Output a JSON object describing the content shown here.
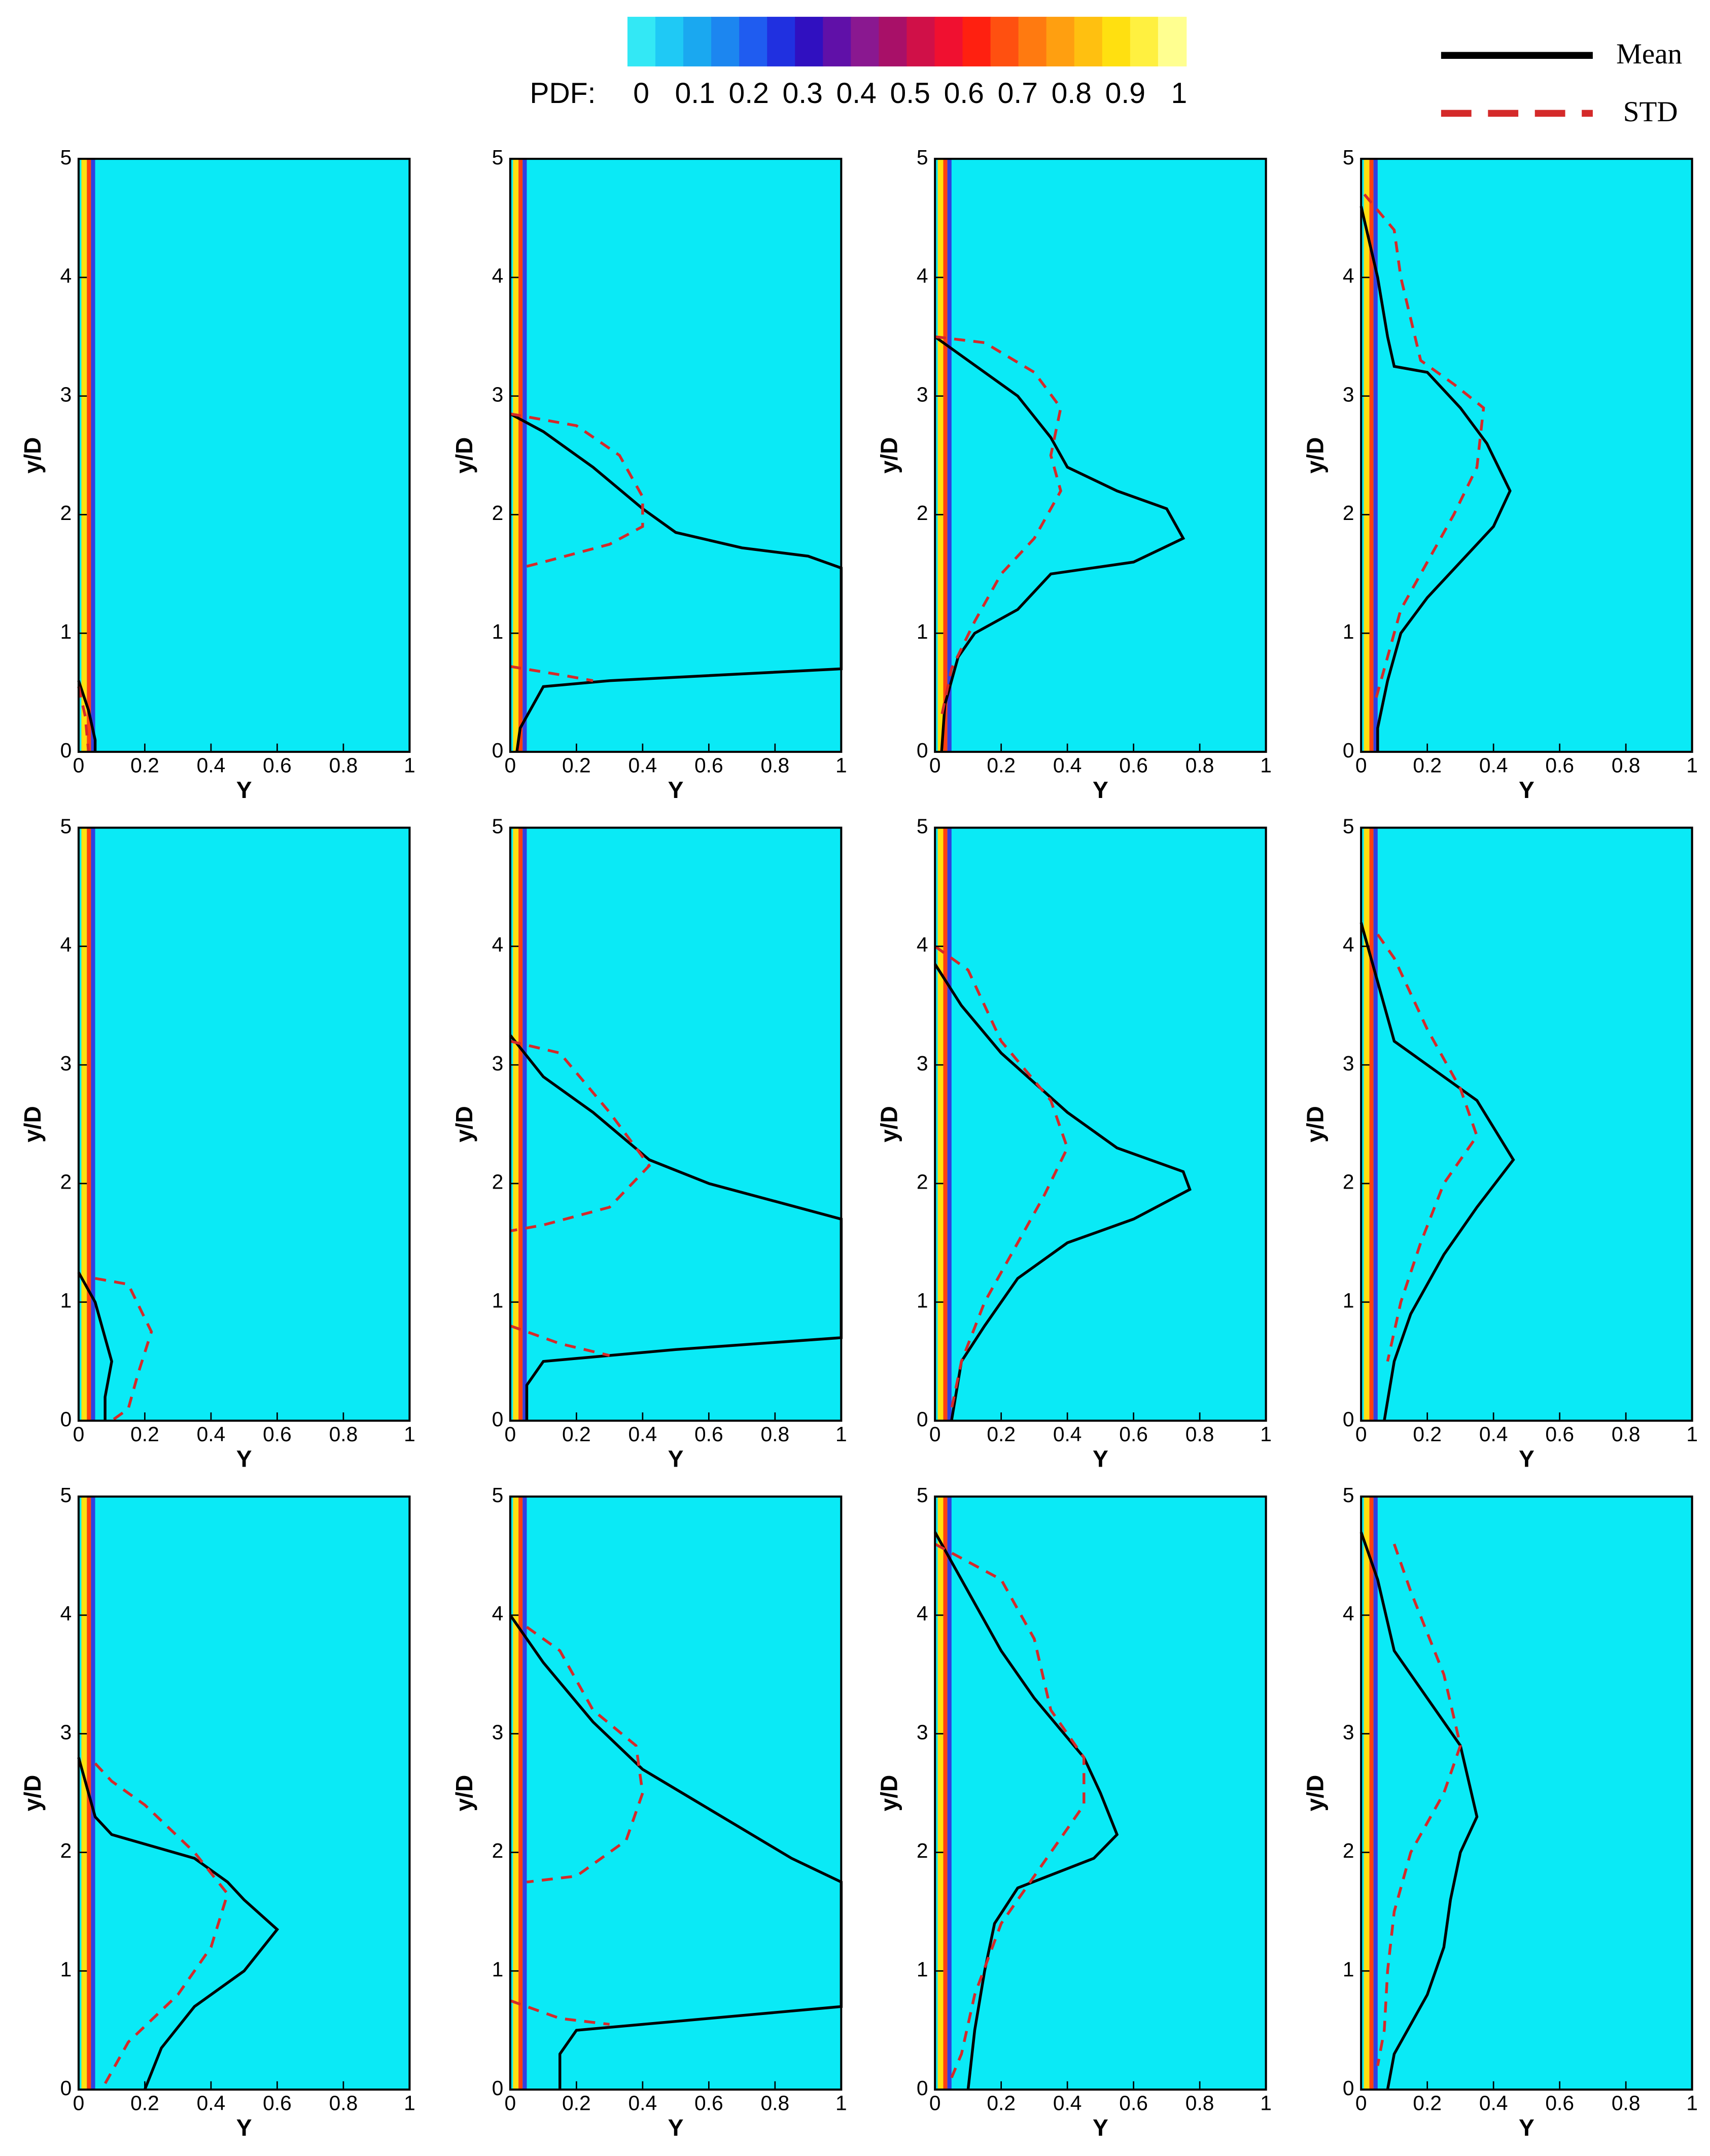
{
  "colorbar": {
    "label": "PDF:",
    "ticks": [
      0,
      0.1,
      0.2,
      0.3,
      0.4,
      0.5,
      0.6,
      0.7,
      0.8,
      0.9,
      1
    ],
    "colors": [
      "#33e8f5",
      "#1fc9f5",
      "#1aa8f0",
      "#1c86f0",
      "#1f5cf0",
      "#2030e0",
      "#3010c0",
      "#6010a8",
      "#8a1890",
      "#a81068",
      "#d01048",
      "#f01030",
      "#ff2010",
      "#ff5010",
      "#ff7a10",
      "#ff9f10",
      "#ffc010",
      "#ffe010",
      "#fff040",
      "#ffff90"
    ]
  },
  "legend": [
    {
      "name": "Mean",
      "color": "#000000",
      "dash": false
    },
    {
      "name": "STD",
      "color": "#d42a2a",
      "dash": true
    }
  ],
  "chart_data": [
    {
      "type": "line",
      "xlabel": "Y",
      "ylabel": "y/D",
      "xlim": [
        0,
        1
      ],
      "ylim": [
        0,
        5
      ],
      "xticks": [
        0,
        0.2,
        0.4,
        0.6,
        0.8,
        1
      ],
      "yticks": [
        0,
        1,
        2,
        3,
        4,
        5
      ],
      "series": [
        {
          "x": [
            0,
            0.03,
            0.05,
            0.05
          ],
          "values": [
            0.6,
            0.35,
            0.1,
            0
          ]
        },
        {
          "x": [
            0,
            0.02,
            0.03
          ],
          "values": [
            0.55,
            0.3,
            0
          ]
        }
      ]
    },
    {
      "type": "line",
      "xlabel": "Y",
      "ylabel": "y/D",
      "xlim": [
        0,
        1
      ],
      "ylim": [
        0,
        5
      ],
      "xticks": [
        0,
        0.2,
        0.4,
        0.6,
        0.8,
        1
      ],
      "yticks": [
        0,
        1,
        2,
        3,
        4,
        5
      ],
      "series": [
        {
          "x": [
            0,
            0.1,
            0.25,
            0.4,
            0.5,
            0.7,
            0.9,
            1,
            1,
            0.3,
            0.1,
            0.07,
            0.03,
            0.02
          ],
          "values": [
            2.85,
            2.7,
            2.4,
            2.05,
            1.85,
            1.72,
            1.65,
            1.55,
            0.7,
            0.6,
            0.55,
            0.4,
            0.2,
            0
          ]
        },
        {
          "x": [
            0,
            0.2,
            0.33,
            0.4,
            0.4,
            0.3,
            0.1,
            0.03,
            null,
            0,
            0.15,
            0.25
          ],
          "values": [
            2.85,
            2.75,
            2.5,
            2.15,
            1.9,
            1.75,
            1.6,
            1.55,
            null,
            0.72,
            0.65,
            0.6
          ]
        }
      ]
    },
    {
      "type": "line",
      "xlabel": "Y",
      "ylabel": "y/D",
      "xlim": [
        0,
        1
      ],
      "ylim": [
        0,
        5
      ],
      "xticks": [
        0,
        0.2,
        0.4,
        0.6,
        0.8,
        1
      ],
      "yticks": [
        0,
        1,
        2,
        3,
        4,
        5
      ],
      "series": [
        {
          "x": [
            0,
            0.1,
            0.25,
            0.35,
            0.4,
            0.55,
            0.7,
            0.73,
            0.75,
            0.6,
            0.35,
            0.25,
            0.12,
            0.07,
            0.03,
            0.02
          ],
          "values": [
            3.5,
            3.3,
            3.0,
            2.65,
            2.4,
            2.2,
            2.05,
            1.9,
            1.8,
            1.6,
            1.5,
            1.2,
            1.0,
            0.8,
            0.4,
            0
          ]
        },
        {
          "x": [
            0,
            0.15,
            0.3,
            0.38,
            0.35,
            0.38,
            0.3,
            0.2,
            0.12,
            0.05,
            0.02
          ],
          "values": [
            3.5,
            3.45,
            3.2,
            2.9,
            2.5,
            2.2,
            1.8,
            1.5,
            1.1,
            0.7,
            0.3
          ]
        }
      ]
    },
    {
      "type": "line",
      "xlabel": "Y",
      "ylabel": "y/D",
      "xlim": [
        0,
        1
      ],
      "ylim": [
        0,
        5
      ],
      "xticks": [
        0,
        0.2,
        0.4,
        0.6,
        0.8,
        1
      ],
      "yticks": [
        0,
        1,
        2,
        3,
        4,
        5
      ],
      "series": [
        {
          "x": [
            0,
            0.05,
            0.08,
            0.1,
            0.2,
            0.3,
            0.38,
            0.45,
            0.4,
            0.3,
            0.2,
            0.12,
            0.08,
            0.05,
            0.05
          ],
          "values": [
            4.6,
            4.0,
            3.5,
            3.25,
            3.2,
            2.9,
            2.6,
            2.2,
            1.9,
            1.6,
            1.3,
            1.0,
            0.6,
            0.2,
            0
          ]
        },
        {
          "x": [
            0.01,
            0.1,
            0.12,
            0.18,
            0.28,
            0.37,
            0.35,
            0.28,
            0.2,
            0.12,
            0.08,
            0.04
          ],
          "values": [
            4.7,
            4.4,
            4.0,
            3.3,
            3.1,
            2.9,
            2.4,
            2.0,
            1.6,
            1.2,
            0.8,
            0.4
          ]
        }
      ]
    },
    {
      "type": "line",
      "xlabel": "Y",
      "ylabel": "y/D",
      "xlim": [
        0,
        1
      ],
      "ylim": [
        0,
        5
      ],
      "xticks": [
        0,
        0.2,
        0.4,
        0.6,
        0.8,
        1
      ],
      "yticks": [
        0,
        1,
        2,
        3,
        4,
        5
      ],
      "series": [
        {
          "x": [
            0,
            0.05,
            0.1,
            0.08,
            0.08
          ],
          "values": [
            1.25,
            1.0,
            0.5,
            0.2,
            0
          ]
        },
        {
          "x": [
            0.05,
            0.15,
            0.22,
            0.18,
            0.15,
            0.1
          ],
          "values": [
            1.2,
            1.15,
            0.75,
            0.4,
            0.1,
            0
          ]
        }
      ]
    },
    {
      "type": "line",
      "xlabel": "Y",
      "ylabel": "y/D",
      "xlim": [
        0,
        1
      ],
      "ylim": [
        0,
        5
      ],
      "xticks": [
        0,
        0.2,
        0.4,
        0.6,
        0.8,
        1
      ],
      "yticks": [
        0,
        1,
        2,
        3,
        4,
        5
      ],
      "series": [
        {
          "x": [
            0,
            0.1,
            0.25,
            0.42,
            0.6,
            0.8,
            1,
            1,
            0.5,
            0.1,
            0.05,
            0.05
          ],
          "values": [
            3.25,
            2.9,
            2.6,
            2.2,
            2.0,
            1.85,
            1.7,
            0.7,
            0.6,
            0.5,
            0.3,
            0
          ]
        },
        {
          "x": [
            0,
            0.15,
            0.3,
            0.42,
            0.3,
            0.1,
            0,
            null,
            0,
            0.15,
            0.3
          ],
          "values": [
            3.2,
            3.1,
            2.6,
            2.15,
            1.8,
            1.65,
            1.6,
            null,
            0.8,
            0.65,
            0.55
          ]
        }
      ]
    },
    {
      "type": "line",
      "xlabel": "Y",
      "ylabel": "y/D",
      "xlim": [
        0,
        1
      ],
      "ylim": [
        0,
        5
      ],
      "xticks": [
        0,
        0.2,
        0.4,
        0.6,
        0.8,
        1
      ],
      "yticks": [
        0,
        1,
        2,
        3,
        4,
        5
      ],
      "series": [
        {
          "x": [
            0,
            0.08,
            0.2,
            0.4,
            0.55,
            0.75,
            0.77,
            0.6,
            0.4,
            0.25,
            0.15,
            0.08,
            0.05
          ],
          "values": [
            3.85,
            3.5,
            3.1,
            2.6,
            2.3,
            2.1,
            1.95,
            1.7,
            1.5,
            1.2,
            0.8,
            0.5,
            0
          ]
        },
        {
          "x": [
            0,
            0.1,
            0.2,
            0.35,
            0.4,
            0.33,
            0.25,
            0.15,
            0.08,
            0.05
          ],
          "values": [
            4.0,
            3.8,
            3.2,
            2.7,
            2.3,
            1.9,
            1.5,
            1.0,
            0.5,
            0.1
          ]
        }
      ]
    },
    {
      "type": "line",
      "xlabel": "Y",
      "ylabel": "y/D",
      "xlim": [
        0,
        1
      ],
      "ylim": [
        0,
        5
      ],
      "xticks": [
        0,
        0.2,
        0.4,
        0.6,
        0.8,
        1
      ],
      "yticks": [
        0,
        1,
        2,
        3,
        4,
        5
      ],
      "series": [
        {
          "x": [
            0,
            0.05,
            0.1,
            0.2,
            0.35,
            0.46,
            0.35,
            0.25,
            0.15,
            0.1,
            0.07
          ],
          "values": [
            4.2,
            3.7,
            3.2,
            3.0,
            2.7,
            2.2,
            1.8,
            1.4,
            0.9,
            0.5,
            0
          ]
        },
        {
          "x": [
            0.05,
            0.1,
            0.2,
            0.3,
            0.35,
            0.25,
            0.18,
            0.12,
            0.08
          ],
          "values": [
            4.1,
            3.9,
            3.3,
            2.8,
            2.4,
            2.0,
            1.5,
            1.0,
            0.5
          ]
        }
      ]
    },
    {
      "type": "line",
      "xlabel": "Y",
      "ylabel": "y/D",
      "xlim": [
        0,
        1
      ],
      "ylim": [
        0,
        5
      ],
      "xticks": [
        0,
        0.2,
        0.4,
        0.6,
        0.8,
        1
      ],
      "yticks": [
        0,
        1,
        2,
        3,
        4,
        5
      ],
      "series": [
        {
          "x": [
            0,
            0.05,
            0.1,
            0.35,
            0.45,
            0.5,
            0.6,
            0.5,
            0.35,
            0.25,
            0.2
          ],
          "values": [
            2.8,
            2.3,
            2.15,
            1.95,
            1.75,
            1.6,
            1.35,
            1.0,
            0.7,
            0.35,
            0
          ]
        },
        {
          "x": [
            0.05,
            0.1,
            0.2,
            0.35,
            0.45,
            0.4,
            0.3,
            0.15,
            0.08
          ],
          "values": [
            2.75,
            2.6,
            2.4,
            2.0,
            1.65,
            1.2,
            0.8,
            0.4,
            0.05
          ]
        }
      ]
    },
    {
      "type": "line",
      "xlabel": "Y",
      "ylabel": "y/D",
      "xlim": [
        0,
        1
      ],
      "ylim": [
        0,
        5
      ],
      "xticks": [
        0,
        0.2,
        0.4,
        0.6,
        0.8,
        1
      ],
      "yticks": [
        0,
        1,
        2,
        3,
        4,
        5
      ],
      "series": [
        {
          "x": [
            0,
            0.1,
            0.25,
            0.4,
            0.55,
            0.7,
            0.85,
            1,
            1,
            0.6,
            0.2,
            0.15,
            0.15
          ],
          "values": [
            4.0,
            3.6,
            3.1,
            2.7,
            2.45,
            2.2,
            1.95,
            1.75,
            0.7,
            0.6,
            0.5,
            0.3,
            0
          ]
        },
        {
          "x": [
            0.05,
            0.15,
            0.25,
            0.38,
            0.4,
            0.35,
            0.2,
            0.05,
            null,
            0,
            0.15,
            0.3
          ],
          "values": [
            3.9,
            3.7,
            3.2,
            2.9,
            2.5,
            2.1,
            1.8,
            1.75,
            null,
            0.75,
            0.6,
            0.55
          ]
        }
      ]
    },
    {
      "type": "line",
      "xlabel": "Y",
      "ylabel": "y/D",
      "xlim": [
        0,
        1
      ],
      "ylim": [
        0,
        5
      ],
      "xticks": [
        0,
        0.2,
        0.4,
        0.6,
        0.8,
        1
      ],
      "yticks": [
        0,
        1,
        2,
        3,
        4,
        5
      ],
      "series": [
        {
          "x": [
            0,
            0.1,
            0.2,
            0.3,
            0.45,
            0.5,
            0.55,
            0.48,
            0.25,
            0.18,
            0.15,
            0.12,
            0.1
          ],
          "values": [
            4.7,
            4.2,
            3.7,
            3.3,
            2.8,
            2.5,
            2.15,
            1.95,
            1.7,
            1.4,
            1.0,
            0.5,
            0
          ]
        },
        {
          "x": [
            0,
            0.2,
            0.3,
            0.35,
            0.45,
            0.45,
            0.35,
            0.2,
            0.12,
            0.08,
            0.05
          ],
          "values": [
            4.6,
            4.3,
            3.8,
            3.2,
            2.8,
            2.4,
            2.0,
            1.4,
            0.8,
            0.3,
            0.1
          ]
        }
      ]
    },
    {
      "type": "line",
      "xlabel": "Y",
      "ylabel": "y/D",
      "xlim": [
        0,
        1
      ],
      "ylim": [
        0,
        5
      ],
      "xticks": [
        0,
        0.2,
        0.4,
        0.6,
        0.8,
        1
      ],
      "yticks": [
        0,
        1,
        2,
        3,
        4,
        5
      ],
      "series": [
        {
          "x": [
            0,
            0.05,
            0.1,
            0.2,
            0.3,
            0.35,
            0.3,
            0.27,
            0.25,
            0.2,
            0.1,
            0.08
          ],
          "values": [
            4.7,
            4.3,
            3.7,
            3.3,
            2.9,
            2.3,
            2.0,
            1.6,
            1.2,
            0.8,
            0.3,
            0
          ]
        },
        {
          "x": [
            0.1,
            0.15,
            0.25,
            0.3,
            0.25,
            0.15,
            0.1,
            0.08,
            0.07,
            0.05
          ],
          "values": [
            4.6,
            4.2,
            3.5,
            2.9,
            2.5,
            2.0,
            1.5,
            1.0,
            0.5,
            0.2
          ]
        }
      ]
    }
  ]
}
